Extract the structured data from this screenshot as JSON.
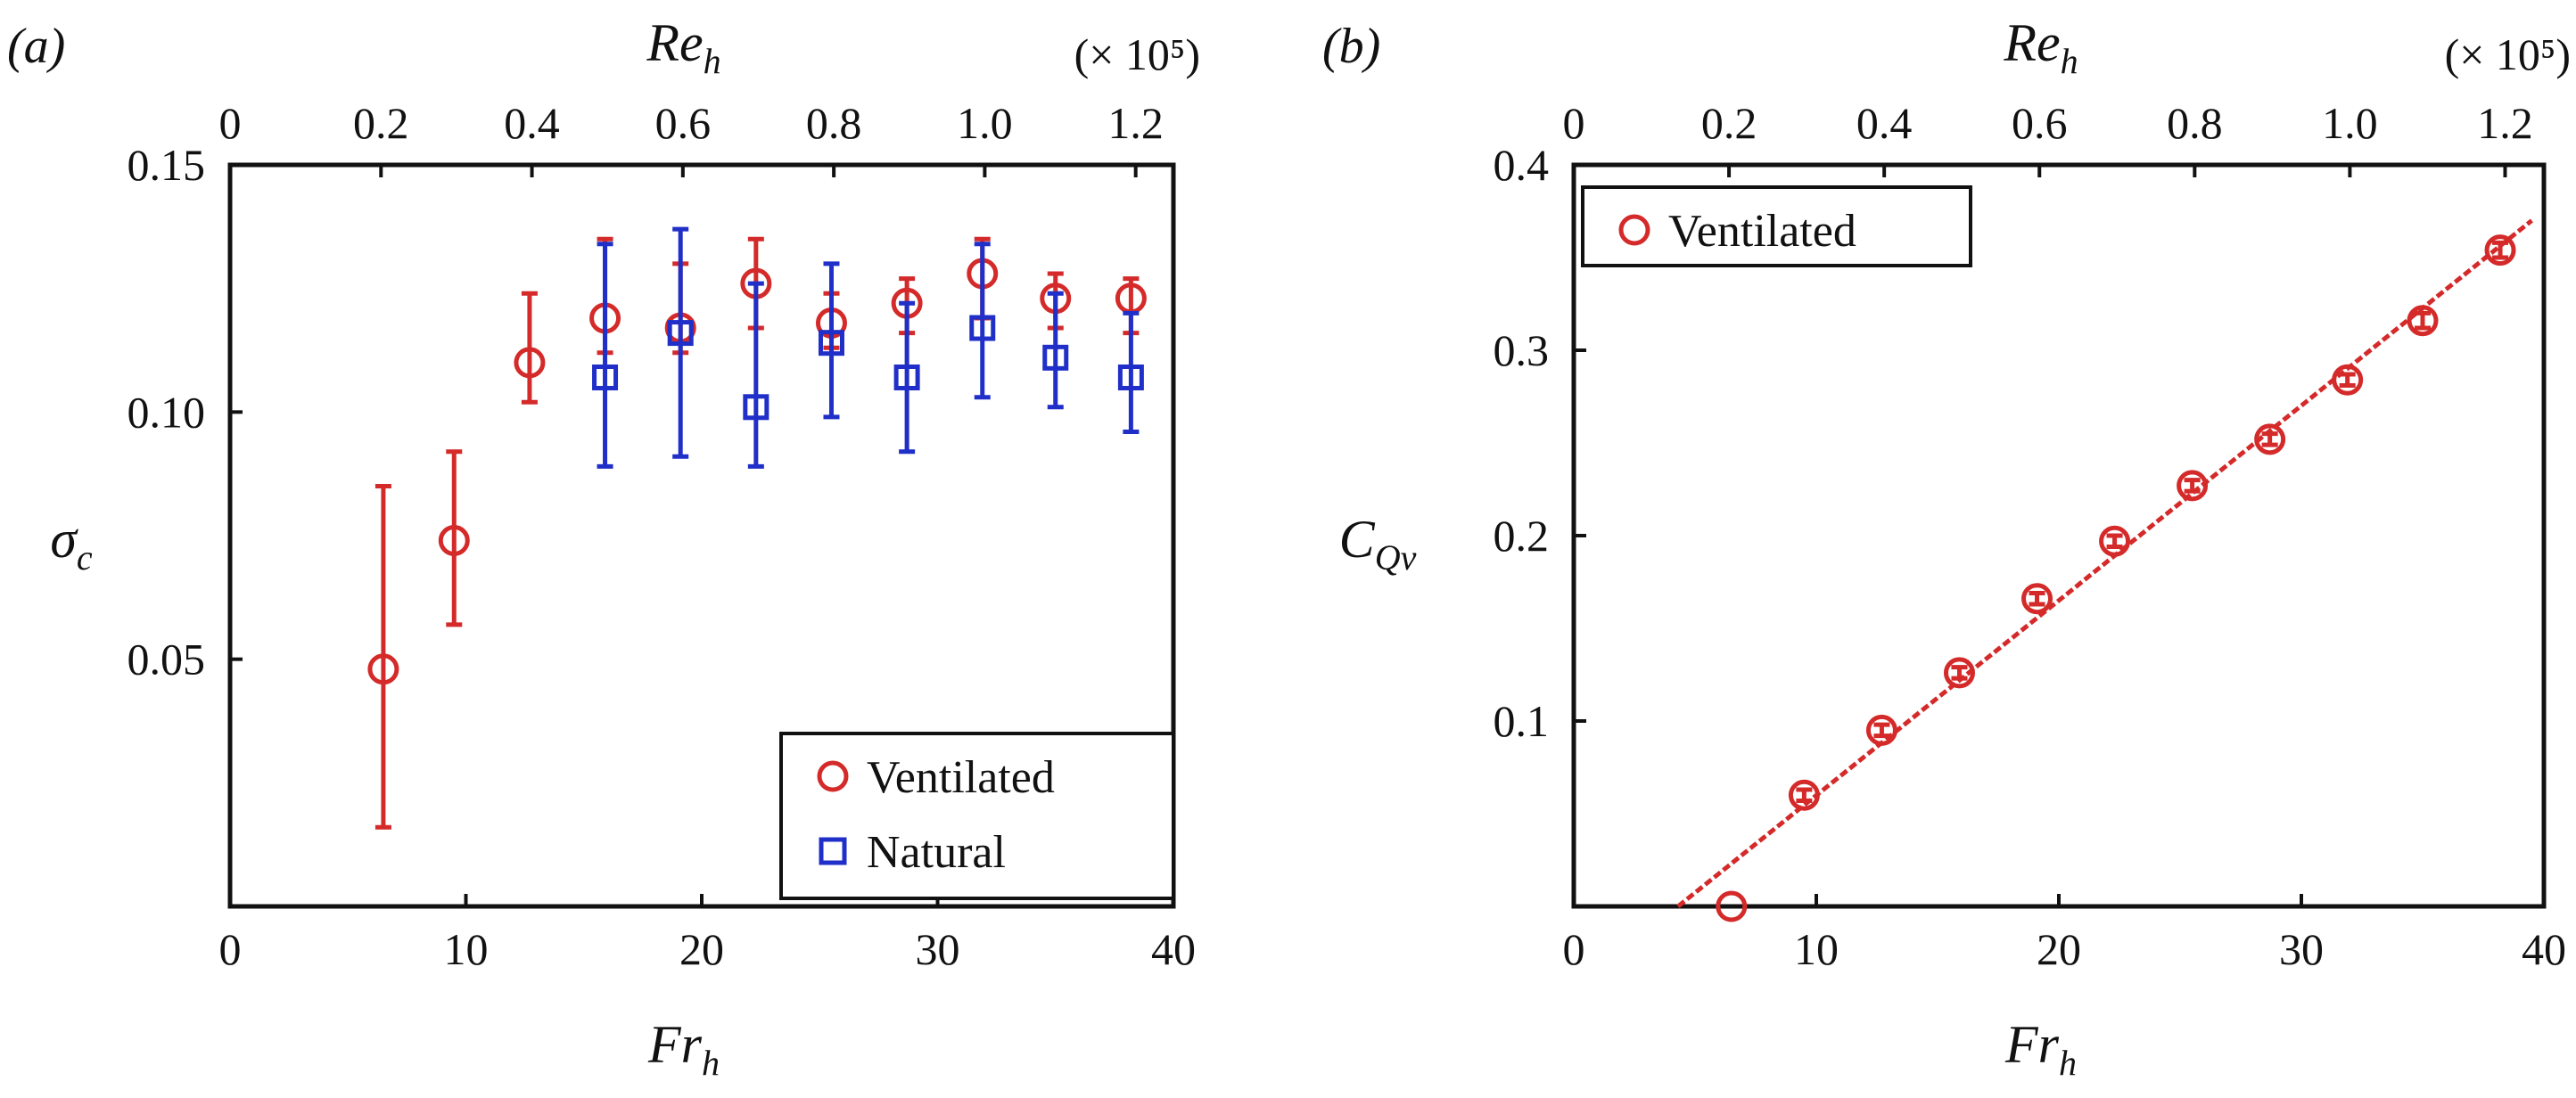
{
  "colors": {
    "ventilated": "#d42a2a",
    "natural": "#1f2fc8",
    "axes": "#111111"
  },
  "chart_data": [
    {
      "type": "scatter",
      "panel_label": "(a)",
      "xlabel": {
        "main": "Fr",
        "sub": "h"
      },
      "ylabel": {
        "main": "σ",
        "sub": "c"
      },
      "top_label": {
        "main": "Re",
        "sub": "h"
      },
      "top_multiplier": "(× 10⁵)",
      "xlim": [
        0,
        40
      ],
      "ylim": [
        0,
        0.15
      ],
      "xticks": [
        "0",
        "10",
        "20",
        "30",
        "40"
      ],
      "yticks": [
        "0.05",
        "0.10",
        "0.15"
      ],
      "top_ticks": [
        "0",
        "0.2",
        "0.4",
        "0.6",
        "0.8",
        "1.0",
        "1.2"
      ],
      "top_lim": [
        0,
        1.25
      ],
      "grid": false,
      "legend_position": "bottom-right",
      "series": [
        {
          "name": "Ventilated",
          "marker": "circle",
          "x": [
            6.5,
            9.5,
            12.7,
            15.9,
            19.1,
            22.3,
            25.5,
            28.7,
            31.9,
            35.0,
            38.2
          ],
          "y": [
            0.048,
            0.074,
            0.11,
            0.119,
            0.117,
            0.126,
            0.118,
            0.122,
            0.128,
            0.123,
            0.123
          ],
          "err_low": [
            0.016,
            0.057,
            0.102,
            0.112,
            0.112,
            0.117,
            0.113,
            0.116,
            0.119,
            0.117,
            0.116
          ],
          "err_high": [
            0.085,
            0.092,
            0.124,
            0.135,
            0.13,
            0.135,
            0.124,
            0.127,
            0.135,
            0.128,
            0.127
          ]
        },
        {
          "name": "Natural",
          "marker": "square",
          "x": [
            15.9,
            19.1,
            22.3,
            25.5,
            28.7,
            31.9,
            35.0,
            38.2
          ],
          "y": [
            0.107,
            0.116,
            0.101,
            0.114,
            0.107,
            0.117,
            0.111,
            0.107
          ],
          "err_low": [
            0.089,
            0.091,
            0.089,
            0.099,
            0.092,
            0.103,
            0.101,
            0.096
          ],
          "err_high": [
            0.134,
            0.137,
            0.126,
            0.13,
            0.122,
            0.134,
            0.124,
            0.12
          ]
        }
      ]
    },
    {
      "type": "scatter",
      "panel_label": "(b)",
      "xlabel": {
        "main": "Fr",
        "sub": "h"
      },
      "ylabel": {
        "main": "C",
        "sub": "Qv"
      },
      "top_label": {
        "main": "Re",
        "sub": "h"
      },
      "top_multiplier": "(× 10⁵)",
      "xlim": [
        0,
        40
      ],
      "ylim": [
        0,
        0.4
      ],
      "xticks": [
        "0",
        "10",
        "20",
        "30",
        "40"
      ],
      "yticks": [
        "0.1",
        "0.2",
        "0.3",
        "0.4"
      ],
      "top_ticks": [
        "0",
        "0.2",
        "0.4",
        "0.6",
        "0.8",
        "1.0",
        "1.2"
      ],
      "top_lim": [
        0,
        1.25
      ],
      "grid": false,
      "legend_position": "top-left",
      "fit_line": {
        "x": [
          4.3,
          39.5
        ],
        "y": [
          0.0,
          0.37
        ]
      },
      "series": [
        {
          "name": "Ventilated",
          "marker": "circle",
          "x": [
            6.5,
            9.5,
            12.7,
            15.9,
            19.1,
            22.3,
            25.5,
            28.7,
            31.9,
            35.0,
            38.2
          ],
          "y": [
            0.0,
            0.06,
            0.095,
            0.126,
            0.166,
            0.197,
            0.227,
            0.252,
            0.284,
            0.316,
            0.354
          ],
          "err_low": [
            0.0,
            0.057,
            0.092,
            0.123,
            0.163,
            0.194,
            0.224,
            0.249,
            0.281,
            0.312,
            0.35
          ],
          "err_high": [
            0.0,
            0.063,
            0.098,
            0.129,
            0.169,
            0.2,
            0.23,
            0.255,
            0.287,
            0.32,
            0.358
          ]
        }
      ]
    }
  ]
}
